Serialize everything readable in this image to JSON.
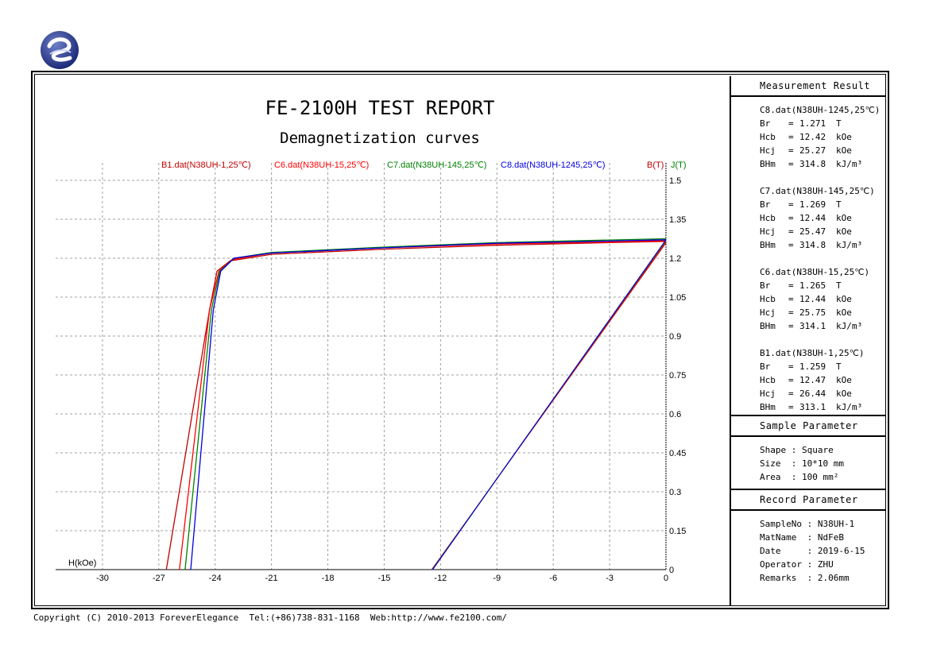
{
  "report": {
    "title": "FE-2100H TEST REPORT",
    "subtitle": "Demagnetization curves"
  },
  "colors": {
    "B1": "#c00000",
    "C6": "#ff0000",
    "C7": "#008000",
    "C8": "#0000e0",
    "axis_right_B": "#c00000",
    "axis_right_J": "#008000",
    "grid": "#a0a0a0"
  },
  "chart_data": {
    "type": "line",
    "xlabel": "H(kOe)",
    "ylabel_B": "B(T)",
    "ylabel_J": "J(T)",
    "xlim": [
      -33,
      0
    ],
    "ylim": [
      0,
      1.5
    ],
    "x_ticks": [
      -30,
      -27,
      -24,
      -21,
      -18,
      -15,
      -12,
      -9,
      -6,
      -3,
      0
    ],
    "y_ticks": [
      0,
      0.15,
      0.3,
      0.45,
      0.6,
      0.75,
      0.9,
      1.05,
      1.2,
      1.35,
      1.5
    ],
    "y_tick_labels": [
      "0",
      "0.15",
      "0.3",
      "0.45",
      "0.6",
      "0.75",
      "0.9",
      "1.05",
      "1.2",
      "1.35",
      "1.5"
    ],
    "grid": true,
    "series": [
      {
        "name": "B1.dat(N38UH-1,25℃)",
        "color": "#c00000",
        "Br": 1.259,
        "Hcb": 12.47,
        "J": [
          [
            -26.6,
            0
          ],
          [
            -24.3,
            1.0
          ],
          [
            -23.9,
            1.15
          ],
          [
            -23.2,
            1.19
          ],
          [
            -21.0,
            1.215
          ],
          [
            -15.0,
            1.235
          ],
          [
            -9.0,
            1.25
          ],
          [
            -3.0,
            1.26
          ],
          [
            0,
            1.265
          ]
        ],
        "B": [
          [
            -12.47,
            0
          ],
          [
            0,
            1.259
          ]
        ]
      },
      {
        "name": "C6.dat(N38UH-15,25℃)",
        "color": "#ff0000",
        "Br": 1.265,
        "Hcb": 12.44,
        "J": [
          [
            -25.9,
            0
          ],
          [
            -24.3,
            1.0
          ],
          [
            -23.8,
            1.15
          ],
          [
            -23.1,
            1.195
          ],
          [
            -21.0,
            1.22
          ],
          [
            -15.0,
            1.24
          ],
          [
            -9.0,
            1.255
          ],
          [
            -3.0,
            1.262
          ],
          [
            0,
            1.268
          ]
        ],
        "B": [
          [
            -12.44,
            0
          ],
          [
            0,
            1.265
          ]
        ]
      },
      {
        "name": "C7.dat(N38UH-145,25℃)",
        "color": "#008000",
        "Br": 1.269,
        "Hcb": 12.44,
        "J": [
          [
            -25.6,
            0
          ],
          [
            -24.2,
            1.0
          ],
          [
            -23.75,
            1.15
          ],
          [
            -23.0,
            1.2
          ],
          [
            -21.0,
            1.222
          ],
          [
            -15.0,
            1.243
          ],
          [
            -9.0,
            1.26
          ],
          [
            -3.0,
            1.27
          ],
          [
            0,
            1.275
          ]
        ],
        "B": [
          [
            -12.44,
            0
          ],
          [
            0,
            1.269
          ]
        ]
      },
      {
        "name": "C8.dat(N38UH-1245,25℃)",
        "color": "#0000e0",
        "Br": 1.271,
        "Hcb": 12.42,
        "J": [
          [
            -25.3,
            0
          ],
          [
            -24.1,
            1.0
          ],
          [
            -23.7,
            1.15
          ],
          [
            -23.0,
            1.2
          ],
          [
            -21.0,
            1.22
          ],
          [
            -15.0,
            1.24
          ],
          [
            -9.0,
            1.258
          ],
          [
            -3.0,
            1.266
          ],
          [
            0,
            1.271
          ]
        ],
        "B": [
          [
            -12.42,
            0
          ],
          [
            0,
            1.271
          ]
        ]
      }
    ]
  },
  "measurement_result": {
    "heading": "Measurement Result",
    "blocks": [
      {
        "title": "C8.dat(N38UH-1245,25℃)",
        "rows": [
          [
            "Br",
            "=",
            "1.271",
            "T"
          ],
          [
            "Hcb",
            "=",
            "12.42",
            "kOe"
          ],
          [
            "Hcj",
            "=",
            "25.27",
            "kOe"
          ],
          [
            "BHm",
            "=",
            "314.8",
            "kJ/m³"
          ]
        ]
      },
      {
        "title": "C7.dat(N38UH-145,25℃)",
        "rows": [
          [
            "Br",
            "=",
            "1.269",
            "T"
          ],
          [
            "Hcb",
            "=",
            "12.44",
            "kOe"
          ],
          [
            "Hcj",
            "=",
            "25.47",
            "kOe"
          ],
          [
            "BHm",
            "=",
            "314.8",
            "kJ/m³"
          ]
        ]
      },
      {
        "title": "C6.dat(N38UH-15,25℃)",
        "rows": [
          [
            "Br",
            "=",
            "1.265",
            "T"
          ],
          [
            "Hcb",
            "=",
            "12.44",
            "kOe"
          ],
          [
            "Hcj",
            "=",
            "25.75",
            "kOe"
          ],
          [
            "BHm",
            "=",
            "314.1",
            "kJ/m³"
          ]
        ]
      },
      {
        "title": "B1.dat(N38UH-1,25℃)",
        "rows": [
          [
            "Br",
            "=",
            "1.259",
            "T"
          ],
          [
            "Hcb",
            "=",
            "12.47",
            "kOe"
          ],
          [
            "Hcj",
            "=",
            "26.44",
            "kOe"
          ],
          [
            "BHm",
            "=",
            "313.1",
            "kJ/m³"
          ]
        ]
      }
    ]
  },
  "sample_parameter": {
    "heading": "Sample Parameter",
    "rows": [
      "Shape : Square",
      "Size  : 10*10 mm",
      "Area  : 100 mm²"
    ]
  },
  "record_parameter": {
    "heading": "Record Parameter",
    "rows": [
      "SampleNo : N38UH-1",
      "MatName  : NdFeB",
      "Date     : 2019-6-15",
      "Operator : ZHU",
      "Remarks  : 2.06mm"
    ]
  },
  "footer": {
    "copyright": "Copyright (C) 2010-2013 ForeverElegance  Tel:(+86)738-831-1168  Web:http://www.fe2100.com/"
  }
}
